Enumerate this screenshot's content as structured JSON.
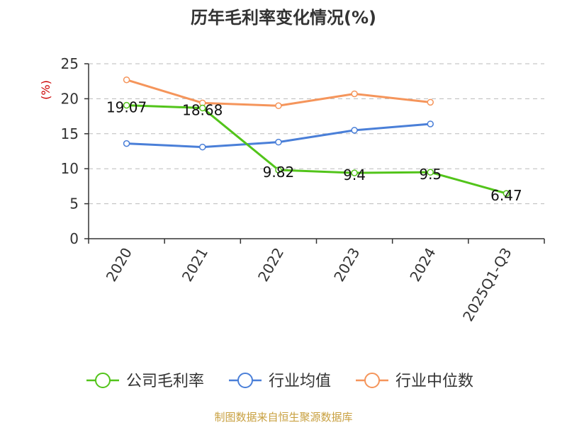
{
  "chart_data": {
    "type": "line",
    "title": "历年毛利率变化情况(%)",
    "ylabel": "(%)",
    "ylim": [
      0,
      25
    ],
    "yticks": [
      0,
      5,
      10,
      15,
      20,
      25
    ],
    "categories": [
      "2020",
      "2021",
      "2022",
      "2023",
      "2024",
      "2025Q1-Q3"
    ],
    "grid": true,
    "legend_position": "bottom",
    "series": [
      {
        "name": "公司毛利率",
        "color": "#52c41a",
        "values": [
          19.07,
          18.68,
          9.82,
          9.4,
          9.5,
          6.47
        ],
        "labels": [
          "19.07",
          "18.68",
          "9.82",
          "9.4",
          "9.5",
          "6.47"
        ]
      },
      {
        "name": "行业均值",
        "color": "#4a7fd8",
        "values": [
          13.6,
          13.1,
          13.8,
          15.5,
          16.4,
          null
        ]
      },
      {
        "name": "行业中位数",
        "color": "#f5955b",
        "values": [
          22.7,
          19.4,
          19.0,
          20.7,
          19.5,
          null
        ]
      }
    ],
    "source": "制图数据来自恒生聚源数据库",
    "colors": {
      "title": "#333333",
      "ylabel": "#cc0000",
      "source": "#c8a040",
      "axis": "#333333",
      "grid": "#bbbbbb"
    }
  }
}
